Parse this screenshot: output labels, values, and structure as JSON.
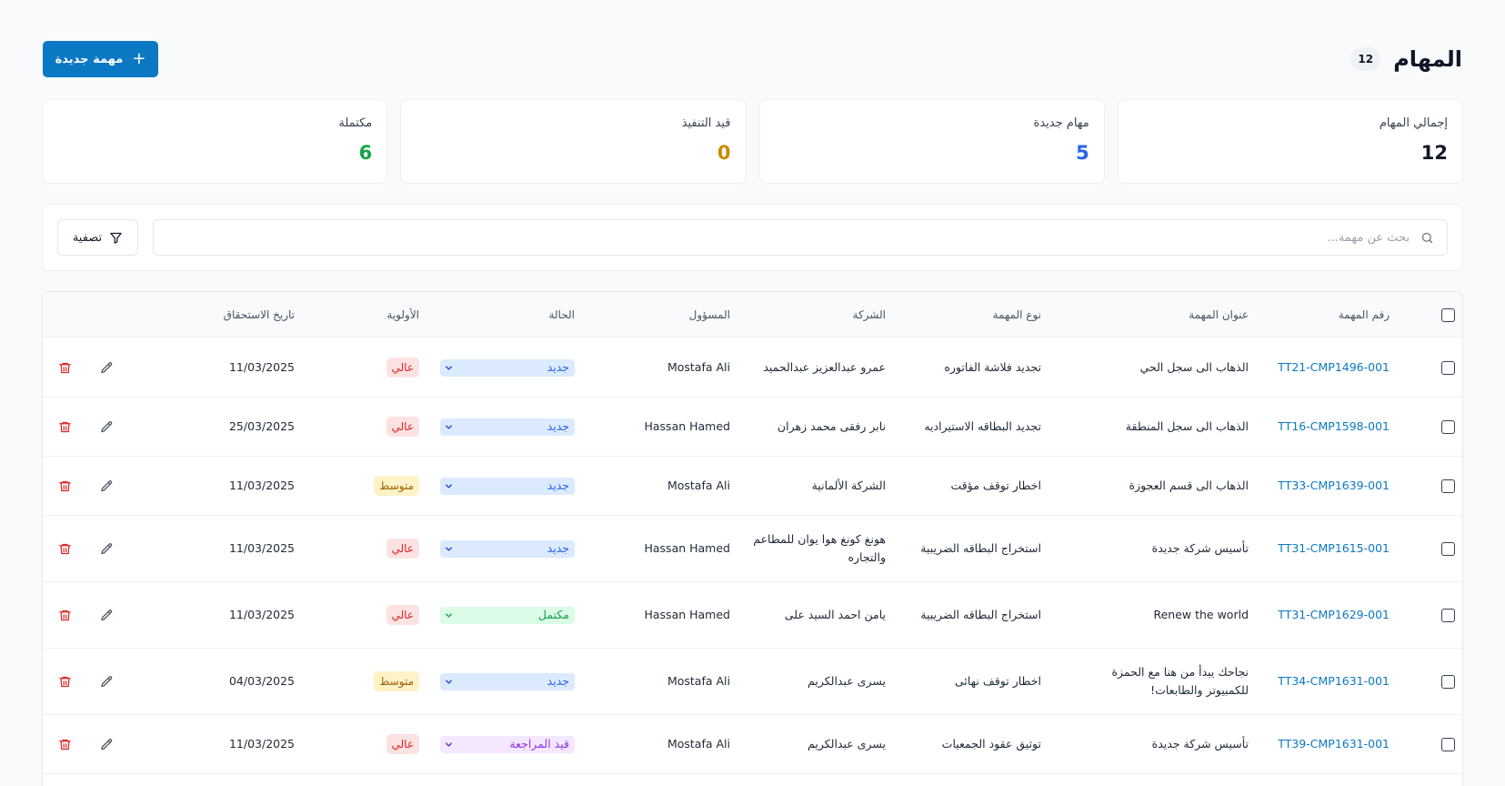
{
  "header": {
    "title": "المهام",
    "count": "12",
    "new_button_label": "مهمة جديدة"
  },
  "stats": [
    {
      "label": "إجمالي المهام",
      "value": "12",
      "color": "#111827"
    },
    {
      "label": "مهام جديدة",
      "value": "5",
      "color": "#2563eb"
    },
    {
      "label": "قيد التنفيذ",
      "value": "0",
      "color": "#ca8a04"
    },
    {
      "label": "مكتملة",
      "value": "6",
      "color": "#16a34a"
    }
  ],
  "search": {
    "placeholder": "بحث عن مهمة...",
    "value": "",
    "filter_label": "تصفية"
  },
  "table": {
    "columns": {
      "task_number": "رقم المهمة",
      "title": "عنوان المهمة",
      "type": "نوع المهمة",
      "company": "الشركة",
      "assignee": "المسؤول",
      "status": "الحالة",
      "priority": "الأولوية",
      "due_date": "تاريخ الاستحقاق"
    },
    "rows": [
      {
        "task_number": "TT21-CMP1496-001",
        "title": "الذهاب الى سجل الحي",
        "type": "تجديد فلاشة الفاتوره",
        "company": "عمرو عبدالعزيز عبدالحميد",
        "assignee": "Mostafa Ali",
        "status": "جديد",
        "status_kind": "new",
        "priority": "عالي",
        "priority_kind": "high",
        "due_date": "11/03/2025"
      },
      {
        "task_number": "TT16-CMP1598-001",
        "title": "الذهاب الى سجل المنطقة",
        "type": "تجديد البطاقه الاستيراديه",
        "company": "نابر رفقى محمد زهران",
        "assignee": "Hassan Hamed",
        "status": "جديد",
        "status_kind": "new",
        "priority": "عالي",
        "priority_kind": "high",
        "due_date": "25/03/2025"
      },
      {
        "task_number": "TT33-CMP1639-001",
        "title": "الذهاب الى قسم العجوزة",
        "type": "اخطار توقف مؤقت",
        "company": "الشركة الألمانية",
        "assignee": "Mostafa Ali",
        "status": "جديد",
        "status_kind": "new",
        "priority": "متوسط",
        "priority_kind": "medium",
        "due_date": "11/03/2025"
      },
      {
        "task_number": "TT31-CMP1615-001",
        "title": "تأسيس شركة جديدة",
        "type": "استخراج البطاقه الضريبية",
        "company": "هونغ كونغ هوا يوان للمطاعم والتجاره",
        "assignee": "Hassan Hamed",
        "status": "جديد",
        "status_kind": "new",
        "priority": "عالي",
        "priority_kind": "high",
        "due_date": "11/03/2025"
      },
      {
        "task_number": "TT31-CMP1629-001",
        "title": "Renew the world",
        "type": "استخراج البطاقه الضريبية",
        "company": "يامن احمد السيد على",
        "assignee": "Hassan Hamed",
        "status": "مكتمل",
        "status_kind": "done",
        "priority": "عالي",
        "priority_kind": "high",
        "due_date": "11/03/2025"
      },
      {
        "task_number": "TT34-CMP1631-001",
        "title": "نجاحك يبدأ من هنا مع الحمزة للكمبيوتر والطابعات!",
        "type": "اخطار توقف نهائى",
        "company": "يسرى عبدالكريم",
        "assignee": "Mostafa Ali",
        "status": "جديد",
        "status_kind": "new",
        "priority": "متوسط",
        "priority_kind": "medium",
        "due_date": "04/03/2025"
      },
      {
        "task_number": "TT39-CMP1631-001",
        "title": "تأسيس شركة جديدة",
        "type": "توثيق عقود الجمعيات",
        "company": "يسرى عبدالكريم",
        "assignee": "Mostafa Ali",
        "status": "قيد المراجعة",
        "status_kind": "review",
        "priority": "عالي",
        "priority_kind": "high",
        "due_date": "11/03/2025"
      }
    ]
  },
  "colors": {
    "accent": "#0b78c4",
    "danger": "#dc2626"
  }
}
